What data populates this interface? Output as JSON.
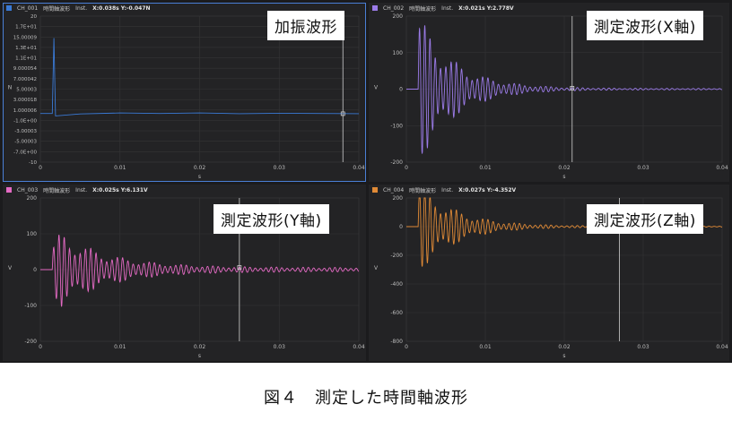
{
  "panels": [
    {
      "channel": "CH_001",
      "mode": "時間軸波形",
      "inst": "Inst.",
      "cursor": "X:0.038s Y:-0.047N",
      "color": "#3a7ad6",
      "tag": "加振波形",
      "selected": true,
      "chart_data": {
        "type": "line",
        "ylabel": "N",
        "xlabel": "s",
        "x_ticks": [
          "0",
          "0.01",
          "0.02",
          "0.03",
          "0.04"
        ],
        "y_ticks": [
          "20",
          "1.7E+01",
          "15.00009",
          "1.3E+01",
          "1.1E+01",
          "9.000054",
          "7.000042",
          "5.00003",
          "3.000018",
          "1.000006",
          "-1.0E+00",
          "-3.00003",
          "-5.00003",
          "-7.0E+00",
          "-10"
        ],
        "xlim": [
          0,
          0.04
        ],
        "ylim": [
          -10,
          20
        ],
        "cursor_x": 0.038,
        "cursor_y": -0.047,
        "series": [
          {
            "x": [
              0,
              0.0015,
              0.0017,
              0.0019,
              0.005,
              0.01,
              0.015,
              0.02,
              0.025,
              0.03,
              0.035,
              0.04
            ],
            "y": [
              0,
              0,
              15.5,
              -0.5,
              -0.1,
              0.1,
              0.0,
              0.1,
              -0.05,
              0.05,
              0.0,
              -0.05
            ]
          }
        ]
      }
    },
    {
      "channel": "CH_002",
      "mode": "時間軸波形",
      "inst": "Inst.",
      "cursor": "X:0.021s Y:2.778V",
      "color": "#9b7be8",
      "tag": "測定波形(X軸)",
      "selected": false,
      "chart_data": {
        "type": "line",
        "ylabel": "V",
        "xlabel": "s",
        "x_ticks": [
          "0",
          "0.01",
          "0.02",
          "0.03",
          "0.04"
        ],
        "y_ticks": [
          "200",
          "100",
          "0",
          "-100",
          "-200"
        ],
        "xlim": [
          0,
          0.04
        ],
        "ylim": [
          -200,
          200
        ],
        "cursor_x": 0.021,
        "cursor_y": 2.778,
        "wave": {
          "start": 0.0015,
          "amp": 210,
          "decay": 0.0045,
          "freq": 1500,
          "floor": 2
        }
      }
    },
    {
      "channel": "CH_003",
      "mode": "時間軸波形",
      "inst": "Inst.",
      "cursor": "X:0.025s Y:6.131V",
      "color": "#e46ac4",
      "tag": "測定波形(Y軸)",
      "selected": false,
      "chart_data": {
        "type": "line",
        "ylabel": "V",
        "xlabel": "s",
        "x_ticks": [
          "0",
          "0.01",
          "0.02",
          "0.03",
          "0.04"
        ],
        "y_ticks": [
          "200",
          "100",
          "0",
          "-100",
          "-200"
        ],
        "xlim": [
          0,
          0.04
        ],
        "ylim": [
          -200,
          200
        ],
        "cursor_x": 0.025,
        "cursor_y": 6.131,
        "wave": {
          "start": 0.0015,
          "amp": 120,
          "decay": 0.006,
          "freq": 1500,
          "floor": 6,
          "rise": 0.0025
        }
      }
    },
    {
      "channel": "CH_004",
      "mode": "時間軸波形",
      "inst": "Inst.",
      "cursor": "X:0.027s Y:-4.352V",
      "color": "#e08a36",
      "tag": "測定波形(Z軸)",
      "selected": false,
      "chart_data": {
        "type": "line",
        "ylabel": "V",
        "xlabel": "s",
        "x_ticks": [
          "0",
          "0.01",
          "0.02",
          "0.03",
          "0.04"
        ],
        "y_ticks": [
          "200",
          "0",
          "-200",
          "-400",
          "-600",
          "-800"
        ],
        "xlim": [
          0,
          0.04
        ],
        "ylim": [
          -800,
          200
        ],
        "cursor_x": 0.027,
        "cursor_y": -4.352,
        "wave": {
          "start": 0.0015,
          "amp": 330,
          "decay": 0.0045,
          "freq": 1500,
          "floor": 4
        }
      }
    }
  ],
  "caption": "図４　測定した時間軸波形"
}
